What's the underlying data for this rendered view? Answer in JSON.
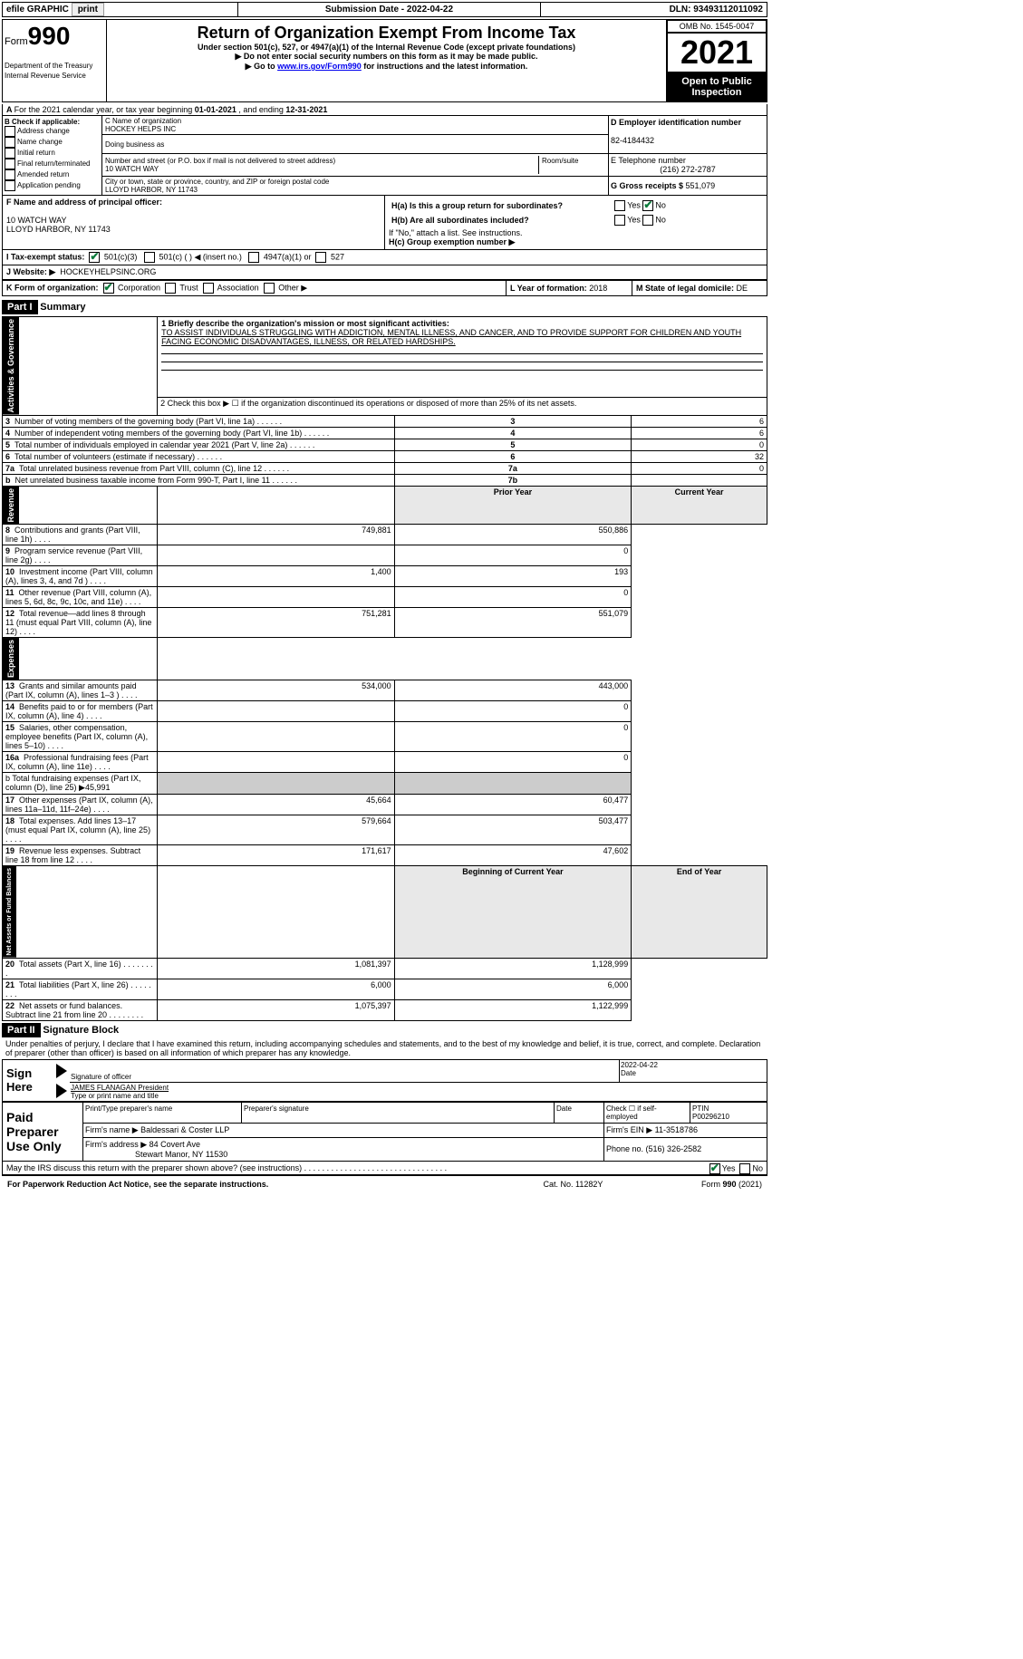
{
  "topbar": {
    "efile": "efile GRAPHIC",
    "print": "print",
    "subdate_label": "Submission Date - ",
    "subdate": "2022-04-22",
    "dln_label": "DLN: ",
    "dln": "93493112011092"
  },
  "header": {
    "form_word": "Form",
    "form_num": "990",
    "title": "Return of Organization Exempt From Income Tax",
    "sub1": "Under section 501(c), 527, or 4947(a)(1) of the Internal Revenue Code (except private foundations)",
    "sub2": "▶ Do not enter social security numbers on this form as it may be made public.",
    "sub3_pre": "▶ Go to ",
    "sub3_link": "www.irs.gov/Form990",
    "sub3_post": " for instructions and the latest information.",
    "dept": "Department of the Treasury\nInternal Revenue Service",
    "omb": "OMB No. 1545-0047",
    "year": "2021",
    "otp": "Open to Public Inspection"
  },
  "A": {
    "text": "For the 2021 calendar year, or tax year beginning ",
    "begin": "01-01-2021",
    "mid": " , and ending ",
    "end": "12-31-2021"
  },
  "B": {
    "label": "B Check if applicable:",
    "opts": [
      "Address change",
      "Name change",
      "Initial return",
      "Final return/terminated",
      "Amended return",
      "Application pending"
    ]
  },
  "C": {
    "name_lbl": "C Name of organization",
    "name": "HOCKEY HELPS INC",
    "dba_lbl": "Doing business as",
    "street_lbl": "Number and street (or P.O. box if mail is not delivered to street address)",
    "room_lbl": "Room/suite",
    "street": "10 WATCH WAY",
    "city_lbl": "City or town, state or province, country, and ZIP or foreign postal code",
    "city": "LLOYD HARBOR, NY  11743"
  },
  "D": {
    "lbl": "D Employer identification number",
    "val": "82-4184432"
  },
  "E": {
    "lbl": "E Telephone number",
    "val": "(216) 272-2787"
  },
  "G": {
    "lbl": "G Gross receipts $ ",
    "val": "551,079"
  },
  "F": {
    "lbl": "F  Name and address of principal officer:",
    "addr1": "10 WATCH WAY",
    "addr2": "LLOYD HARBOR, NY  11743"
  },
  "H": {
    "a": "H(a)  Is this a group return for subordinates?",
    "b": "H(b)  Are all subordinates included?",
    "note": "If \"No,\" attach a list. See instructions.",
    "c": "H(c)  Group exemption number ▶",
    "yes": "Yes",
    "no": "No"
  },
  "I": {
    "lbl": "I  Tax-exempt status:",
    "opts": [
      "501(c)(3)",
      "501(c) (  ) ◀ (insert no.)",
      "4947(a)(1) or",
      "527"
    ]
  },
  "J": {
    "lbl": "J  Website: ▶",
    "val": "HOCKEYHELPSINC.ORG"
  },
  "K": {
    "lbl": "K Form of organization:",
    "opts": [
      "Corporation",
      "Trust",
      "Association",
      "Other ▶"
    ]
  },
  "L": {
    "lbl": "L Year of formation: ",
    "val": "2018"
  },
  "M": {
    "lbl": "M State of legal domicile: ",
    "val": "DE"
  },
  "part1": {
    "label": "Part I",
    "title": "Summary"
  },
  "summary": {
    "line1_lbl": "1  Briefly describe the organization's mission or most significant activities:",
    "line1_val": "TO ASSIST INDIVIDUALS STRUGGLING WITH ADDICTION, MENTAL ILLNESS, AND CANCER, AND TO PROVIDE SUPPORT FOR CHILDREN AND YOUTH FACING ECONOMIC DISADVANTAGES, ILLNESS, OR RELATED HARDSHIPS.",
    "line2": "2  Check this box ▶ ☐ if the organization discontinued its operations or disposed of more than 25% of its net assets.",
    "rows": [
      {
        "n": "3",
        "t": "Number of voting members of the governing body (Part VI, line 1a)",
        "box": "3",
        "v": "6"
      },
      {
        "n": "4",
        "t": "Number of independent voting members of the governing body (Part VI, line 1b)",
        "box": "4",
        "v": "6"
      },
      {
        "n": "5",
        "t": "Total number of individuals employed in calendar year 2021 (Part V, line 2a)",
        "box": "5",
        "v": "0"
      },
      {
        "n": "6",
        "t": "Total number of volunteers (estimate if necessary)",
        "box": "6",
        "v": "32"
      },
      {
        "n": "7a",
        "t": "Total unrelated business revenue from Part VIII, column (C), line 12",
        "box": "7a",
        "v": "0"
      },
      {
        "n": "b",
        "t": "Net unrelated business taxable income from Form 990-T, Part I, line 11",
        "box": "7b",
        "v": ""
      }
    ],
    "col_hdr": {
      "prior": "Prior Year",
      "current": "Current Year"
    },
    "revenue": [
      {
        "n": "8",
        "t": "Contributions and grants (Part VIII, line 1h)",
        "p": "749,881",
        "c": "550,886"
      },
      {
        "n": "9",
        "t": "Program service revenue (Part VIII, line 2g)",
        "p": "",
        "c": "0"
      },
      {
        "n": "10",
        "t": "Investment income (Part VIII, column (A), lines 3, 4, and 7d )",
        "p": "1,400",
        "c": "193"
      },
      {
        "n": "11",
        "t": "Other revenue (Part VIII, column (A), lines 5, 6d, 8c, 9c, 10c, and 11e)",
        "p": "",
        "c": "0"
      },
      {
        "n": "12",
        "t": "Total revenue—add lines 8 through 11 (must equal Part VIII, column (A), line 12)",
        "p": "751,281",
        "c": "551,079"
      }
    ],
    "expenses": [
      {
        "n": "13",
        "t": "Grants and similar amounts paid (Part IX, column (A), lines 1–3 )",
        "p": "534,000",
        "c": "443,000"
      },
      {
        "n": "14",
        "t": "Benefits paid to or for members (Part IX, column (A), line 4)",
        "p": "",
        "c": "0"
      },
      {
        "n": "15",
        "t": "Salaries, other compensation, employee benefits (Part IX, column (A), lines 5–10)",
        "p": "",
        "c": "0"
      },
      {
        "n": "16a",
        "t": "Professional fundraising fees (Part IX, column (A), line 11e)",
        "p": "",
        "c": "0"
      }
    ],
    "line16b": "b  Total fundraising expenses (Part IX, column (D), line 25) ▶45,991",
    "expenses2": [
      {
        "n": "17",
        "t": "Other expenses (Part IX, column (A), lines 11a–11d, 11f–24e)",
        "p": "45,664",
        "c": "60,477"
      },
      {
        "n": "18",
        "t": "Total expenses. Add lines 13–17 (must equal Part IX, column (A), line 25)",
        "p": "579,664",
        "c": "503,477"
      },
      {
        "n": "19",
        "t": "Revenue less expenses. Subtract line 18 from line 12",
        "p": "171,617",
        "c": "47,602"
      }
    ],
    "net_hdr": {
      "begin": "Beginning of Current Year",
      "end": "End of Year"
    },
    "net": [
      {
        "n": "20",
        "t": "Total assets (Part X, line 16)",
        "p": "1,081,397",
        "c": "1,128,999"
      },
      {
        "n": "21",
        "t": "Total liabilities (Part X, line 26)",
        "p": "6,000",
        "c": "6,000"
      },
      {
        "n": "22",
        "t": "Net assets or fund balances. Subtract line 21 from line 20",
        "p": "1,075,397",
        "c": "1,122,999"
      }
    ],
    "sections": {
      "ag": "Activities & Governance",
      "rev": "Revenue",
      "exp": "Expenses",
      "net": "Net Assets or Fund Balances"
    }
  },
  "part2": {
    "label": "Part II",
    "title": "Signature Block"
  },
  "sig": {
    "decl": "Under penalties of perjury, I declare that I have examined this return, including accompanying schedules and statements, and to the best of my knowledge and belief, it is true, correct, and complete. Declaration of preparer (other than officer) is based on all information of which preparer has any knowledge.",
    "sign_here": "Sign Here",
    "sig_officer": "Signature of officer",
    "date": "Date",
    "sig_date": "2022-04-22",
    "name_title": "JAMES FLANAGAN  President",
    "type_name": "Type or print name and title",
    "paid": "Paid Preparer Use Only",
    "prep_name_lbl": "Print/Type preparer's name",
    "prep_sig_lbl": "Preparer's signature",
    "date_lbl": "Date",
    "check_self": "Check ☐ if self-employed",
    "ptin_lbl": "PTIN",
    "ptin": "P00296210",
    "firm_name_lbl": "Firm's name    ▶ ",
    "firm_name": "Baldessari & Coster LLP",
    "firm_ein_lbl": "Firm's EIN ▶ ",
    "firm_ein": "11-3518786",
    "firm_addr_lbl": "Firm's address ▶ ",
    "firm_addr1": "84 Covert Ave",
    "firm_addr2": "Stewart Manor, NY  11530",
    "phone_lbl": "Phone no. ",
    "phone": "(516) 326-2582",
    "discuss": "May the IRS discuss this return with the preparer shown above? (see instructions)",
    "yes": "Yes",
    "no": "No",
    "paperwork": "For Paperwork Reduction Act Notice, see the separate instructions.",
    "cat": "Cat. No. 11282Y",
    "form": "Form 990 (2021)"
  }
}
